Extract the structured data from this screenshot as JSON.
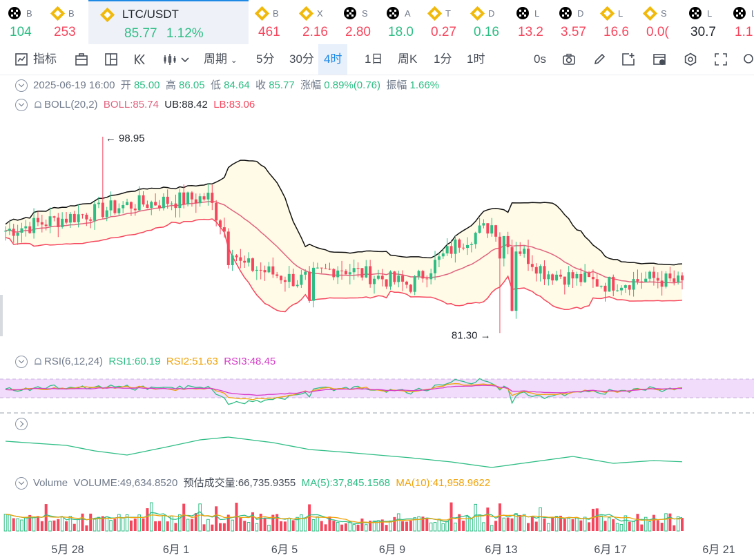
{
  "tickers": [
    {
      "name": "B",
      "value": "104",
      "icon": "okx-icon",
      "dir": "up"
    },
    {
      "name": "B",
      "value": "253",
      "icon": "binance-icon",
      "dir": "dn"
    },
    {
      "name": "LTC/USDT",
      "value": "85.77",
      "change": "1.12%",
      "icon": "binance-icon",
      "dir": "up",
      "active": true
    },
    {
      "name": "B",
      "value": "461",
      "icon": "binance-icon",
      "dir": "dn"
    },
    {
      "name": "X",
      "value": "2.16",
      "icon": "binance-icon",
      "dir": "dn"
    },
    {
      "name": "S",
      "value": "2.80",
      "icon": "okx-icon",
      "dir": "dn"
    },
    {
      "name": "A",
      "value": "18.0",
      "icon": "okx-icon",
      "dir": "up"
    },
    {
      "name": "T",
      "value": "0.27",
      "icon": "binance-icon",
      "dir": "dn"
    },
    {
      "name": "D",
      "value": "0.16",
      "icon": "binance-icon",
      "dir": "up"
    },
    {
      "name": "L",
      "value": "13.2",
      "icon": "okx-icon",
      "dir": "dn"
    },
    {
      "name": "D",
      "value": "3.57",
      "icon": "okx-icon",
      "dir": "dn"
    },
    {
      "name": "L",
      "value": "16.6",
      "icon": "binance-icon",
      "dir": "dn"
    },
    {
      "name": "S",
      "value": "0.0(",
      "icon": "binance-icon",
      "dir": "dn"
    },
    {
      "name": "L",
      "value": "30.7",
      "icon": "okx-icon",
      "dir": "neu"
    },
    {
      "name": "L",
      "value": "1.1",
      "icon": "okx-icon",
      "dir": "dn"
    }
  ],
  "toolbar": {
    "indicators": "指标",
    "period": "周期",
    "periods": [
      "5分",
      "30分",
      "4时",
      "1日",
      "周K",
      "1分",
      "1时"
    ],
    "active_period": "4时",
    "countdown": "0s"
  },
  "ohlc": {
    "datetime": "2025-06-19 16:00",
    "open_label": "开",
    "open": "85.00",
    "high_label": "高",
    "high": "86.05",
    "low_label": "低",
    "low": "84.64",
    "close_label": "收",
    "close": "85.77",
    "change_label": "涨幅",
    "change": "0.89%(0.76)",
    "amplitude_label": "振幅",
    "amplitude": "1.66%"
  },
  "boll": {
    "name": "BOLL(20,2)",
    "boll": "BOLL:85.74",
    "ub": "UB:88.42",
    "lb": "LB:83.06"
  },
  "price_marks": {
    "high": "98.95",
    "low": "81.30"
  },
  "rsi": {
    "name": "RSI(6,12,24)",
    "rsi1": "RSI1:60.19",
    "rsi2": "RSI2:51.63",
    "rsi3": "RSI3:48.45"
  },
  "volume": {
    "name": "Volume",
    "volume": "VOLUME:49,634.8520",
    "estimated": "预估成交量:66,735.9355",
    "ma5": "MA(5):37,845.1568",
    "ma10": "MA(10):41,958.9622"
  },
  "x_axis": [
    "5月 28",
    "6月 1",
    "6月 5",
    "6月 9",
    "6月 13",
    "6月 17",
    "6月 21"
  ],
  "colors": {
    "up": "#2ebd85",
    "down": "#f6465d",
    "boll_mid": "#e0637f",
    "boll_upper": "#111111",
    "boll_lower": "#f6465d",
    "rsi1": "#2ebd85",
    "rsi2": "#f0a30a",
    "rsi3": "#d63cc8",
    "accent": "#1e88e5",
    "band_fill": "#fffbe6",
    "rsi_band": "#f1dcfb"
  }
}
